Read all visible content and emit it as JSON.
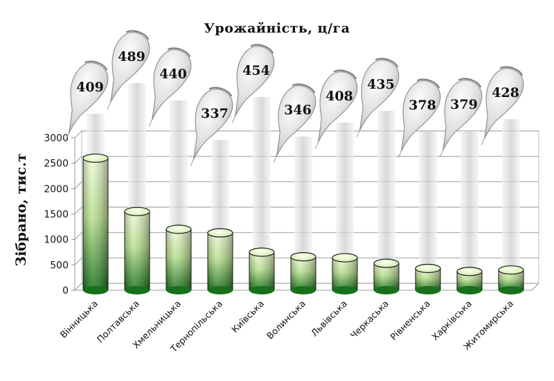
{
  "chart_data": {
    "type": "bar",
    "title": "Урожайність, ц/га",
    "ylabel": "Зібрано, тис.т",
    "xlabel": "",
    "ylim": [
      0,
      3000
    ],
    "yticks": [
      "0",
      "500",
      "1000",
      "1500",
      "2000",
      "2500",
      "3000"
    ],
    "grid": true,
    "categories": [
      "Вінницька",
      "Полтавська",
      "Хмельницька",
      "Тернопільська",
      "Київська",
      "Волинська",
      "Львівська",
      "Черкаська",
      "Рівненська",
      "Харківська",
      "Житомирська"
    ],
    "series": [
      {
        "values": [
          2600,
          1550,
          1200,
          1130,
          750,
          660,
          640,
          530,
          430,
          370,
          400
        ]
      }
    ],
    "yield_labels": [
      "409",
      "489",
      "440",
      "337",
      "454",
      "346",
      "408",
      "435",
      "378",
      "379",
      "428"
    ],
    "colors": {
      "bar_top": "#e9f7cf",
      "bar_bottom": "#1f7a1f",
      "grid": "#a6a6a6",
      "beet": "#d8d8d8"
    },
    "icon": "sugar-beet-icon"
  }
}
